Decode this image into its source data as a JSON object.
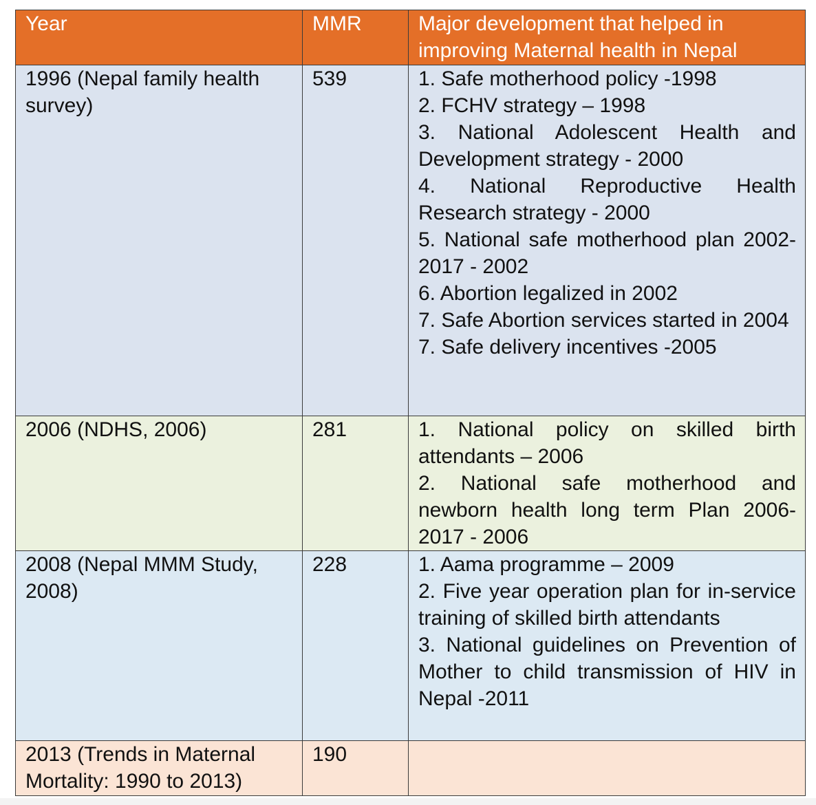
{
  "table": {
    "headers": {
      "year": "Year",
      "mmr": "MMR",
      "development": "Major development that helped in improving Maternal health in Nepal"
    },
    "rows": [
      {
        "year": "1996 (Nepal family health survey)",
        "mmr": "539",
        "developments": [
          "1. Safe motherhood policy -1998",
          "2. FCHV strategy – 1998",
          "3. National Adolescent Health and Development strategy - 2000",
          "4. National Reproductive Health Research strategy - 2000",
          "5. National safe motherhood plan 2002-2017 - 2002",
          "6. Abortion legalized in 2002",
          "7. Safe Abortion services started in 2004",
          "7. Safe delivery incentives -2005"
        ]
      },
      {
        "year": "2006 (NDHS, 2006)",
        "mmr": "281",
        "developments": [
          "1. National policy on skilled birth attendants – 2006",
          "2. National safe motherhood and newborn health long term Plan 2006-2017 - 2006"
        ]
      },
      {
        "year": "2008 (Nepal MMM Study, 2008)",
        "mmr": "228",
        "developments": [
          "1. Aama programme – 2009",
          "2. Five year operation plan for in-service training of skilled birth attendants",
          "3. National guidelines on Prevention of Mother to child transmission of HIV in Nepal -2011"
        ]
      },
      {
        "year": "2013 (Trends in Maternal Mortality: 1990 to 2013)",
        "mmr": "190",
        "developments": []
      }
    ]
  }
}
